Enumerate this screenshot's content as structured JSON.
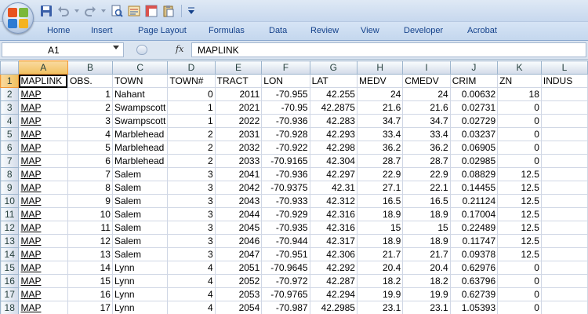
{
  "quick_access": {
    "icons": [
      "save-icon",
      "undo-icon",
      "undo-dropdown-icon",
      "redo-icon",
      "redo-dropdown-icon",
      "print-preview-icon",
      "form-icon",
      "pivot-icon",
      "paste-special-icon",
      "customize-toolbar-icon"
    ]
  },
  "ribbon": {
    "tabs": [
      "Home",
      "Insert",
      "Page Layout",
      "Formulas",
      "Data",
      "Review",
      "View",
      "Developer",
      "Acrobat"
    ]
  },
  "formula_bar": {
    "name_box": "A1",
    "fx": "fx",
    "formula": "MAPLINK"
  },
  "colors": {
    "hyperlink": "#0000ff",
    "selected_header": "#f1c15f",
    "ribbon_text": "#15428b"
  },
  "sheet": {
    "columns": [
      "A",
      "B",
      "C",
      "D",
      "E",
      "F",
      "G",
      "H",
      "I",
      "J",
      "K",
      "L"
    ],
    "active_cell": "A1",
    "header_row": [
      "MAPLINK",
      "OBS.",
      "TOWN",
      "TOWN#",
      "TRACT",
      "LON",
      "LAT",
      "MEDV",
      "CMEDV",
      "CRIM",
      "ZN",
      "INDUS"
    ],
    "rows": [
      [
        "MAP",
        "1",
        "Nahant",
        "0",
        "2011",
        "-70.955",
        "42.255",
        "24",
        "24",
        "0.00632",
        "18",
        ""
      ],
      [
        "MAP",
        "2",
        "Swampscott",
        "1",
        "2021",
        "-70.95",
        "42.2875",
        "21.6",
        "21.6",
        "0.02731",
        "0",
        ""
      ],
      [
        "MAP",
        "3",
        "Swampscott",
        "1",
        "2022",
        "-70.936",
        "42.283",
        "34.7",
        "34.7",
        "0.02729",
        "0",
        ""
      ],
      [
        "MAP",
        "4",
        "Marblehead",
        "2",
        "2031",
        "-70.928",
        "42.293",
        "33.4",
        "33.4",
        "0.03237",
        "0",
        ""
      ],
      [
        "MAP",
        "5",
        "Marblehead",
        "2",
        "2032",
        "-70.922",
        "42.298",
        "36.2",
        "36.2",
        "0.06905",
        "0",
        ""
      ],
      [
        "MAP",
        "6",
        "Marblehead",
        "2",
        "2033",
        "-70.9165",
        "42.304",
        "28.7",
        "28.7",
        "0.02985",
        "0",
        ""
      ],
      [
        "MAP",
        "7",
        "Salem",
        "3",
        "2041",
        "-70.936",
        "42.297",
        "22.9",
        "22.9",
        "0.08829",
        "12.5",
        ""
      ],
      [
        "MAP",
        "8",
        "Salem",
        "3",
        "2042",
        "-70.9375",
        "42.31",
        "27.1",
        "22.1",
        "0.14455",
        "12.5",
        ""
      ],
      [
        "MAP",
        "9",
        "Salem",
        "3",
        "2043",
        "-70.933",
        "42.312",
        "16.5",
        "16.5",
        "0.21124",
        "12.5",
        ""
      ],
      [
        "MAP",
        "10",
        "Salem",
        "3",
        "2044",
        "-70.929",
        "42.316",
        "18.9",
        "18.9",
        "0.17004",
        "12.5",
        ""
      ],
      [
        "MAP",
        "11",
        "Salem",
        "3",
        "2045",
        "-70.935",
        "42.316",
        "15",
        "15",
        "0.22489",
        "12.5",
        ""
      ],
      [
        "MAP",
        "12",
        "Salem",
        "3",
        "2046",
        "-70.944",
        "42.317",
        "18.9",
        "18.9",
        "0.11747",
        "12.5",
        ""
      ],
      [
        "MAP",
        "13",
        "Salem",
        "3",
        "2047",
        "-70.951",
        "42.306",
        "21.7",
        "21.7",
        "0.09378",
        "12.5",
        ""
      ],
      [
        "MAP",
        "14",
        "Lynn",
        "4",
        "2051",
        "-70.9645",
        "42.292",
        "20.4",
        "20.4",
        "0.62976",
        "0",
        ""
      ],
      [
        "MAP",
        "15",
        "Lynn",
        "4",
        "2052",
        "-70.972",
        "42.287",
        "18.2",
        "18.2",
        "0.63796",
        "0",
        ""
      ],
      [
        "MAP",
        "16",
        "Lynn",
        "4",
        "2053",
        "-70.9765",
        "42.294",
        "19.9",
        "19.9",
        "0.62739",
        "0",
        ""
      ],
      [
        "MAP",
        "17",
        "Lynn",
        "4",
        "2054",
        "-70.987",
        "42.2985",
        "23.1",
        "23.1",
        "1.05393",
        "0",
        ""
      ]
    ]
  }
}
